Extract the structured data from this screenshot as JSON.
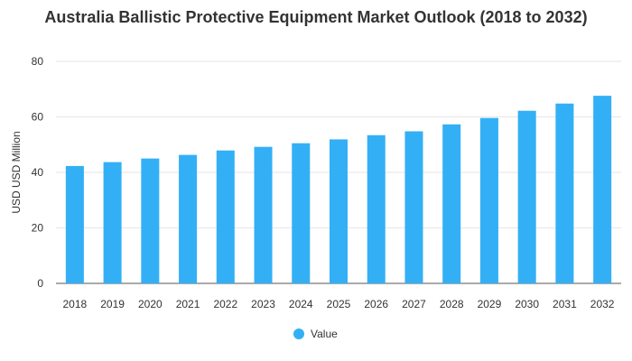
{
  "chart_data": {
    "type": "bar",
    "title": "Australia Ballistic Protective Equipment Market Outlook (2018 to 2032)",
    "xlabel": "",
    "ylabel": "USD USD Million",
    "ylim": [
      0,
      80
    ],
    "yticks": [
      0,
      20,
      40,
      60,
      80
    ],
    "grid": true,
    "legend_position": "bottom",
    "categories": [
      "2018",
      "2019",
      "2020",
      "2021",
      "2022",
      "2023",
      "2024",
      "2025",
      "2026",
      "2027",
      "2028",
      "2029",
      "2030",
      "2031",
      "2032"
    ],
    "series": [
      {
        "name": "Value",
        "color": "#33b0f5",
        "values": [
          42.3,
          43.7,
          45.0,
          46.3,
          47.9,
          49.2,
          50.5,
          51.9,
          53.4,
          54.8,
          57.3,
          59.6,
          62.2,
          64.8,
          67.6
        ]
      }
    ]
  }
}
